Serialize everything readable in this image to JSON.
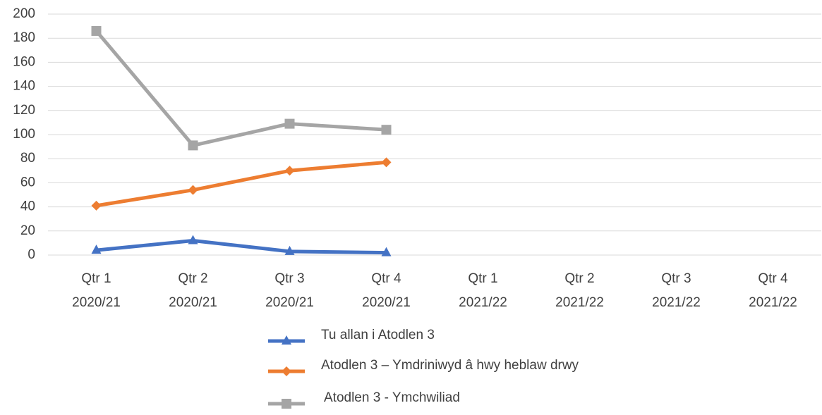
{
  "chart_data": {
    "type": "line",
    "categories": [
      "Qtr 1\n2020/21",
      "Qtr 2\n2020/21",
      "Qtr 3\n2020/21",
      "Qtr 4\n2020/21",
      "Qtr 1\n2021/22",
      "Qtr 2\n2021/22",
      "Qtr 3\n2021/22",
      "Qtr 4\n2021/22"
    ],
    "series": [
      {
        "name": "Tu allan i Atodlen 3",
        "color": "#4472c4",
        "marker": "triangle",
        "values": [
          4,
          12,
          3,
          2,
          null,
          null,
          null,
          null
        ]
      },
      {
        "name": "Atodlen 3 – Ymdriniwyd â hwy heblaw drwy",
        "color": "#ed7d31",
        "marker": "diamond",
        "values": [
          41,
          54,
          70,
          77,
          null,
          null,
          null,
          null
        ]
      },
      {
        "name": "Atodlen 3 - Ymchwiliad",
        "color": "#a5a5a5",
        "marker": "square",
        "values": [
          186,
          91,
          109,
          104,
          null,
          null,
          null,
          null
        ]
      }
    ],
    "ylim": [
      0,
      200
    ],
    "yticks": [
      0,
      20,
      40,
      60,
      80,
      100,
      120,
      140,
      160,
      180,
      200
    ],
    "grid": true,
    "legend": "bottom"
  }
}
